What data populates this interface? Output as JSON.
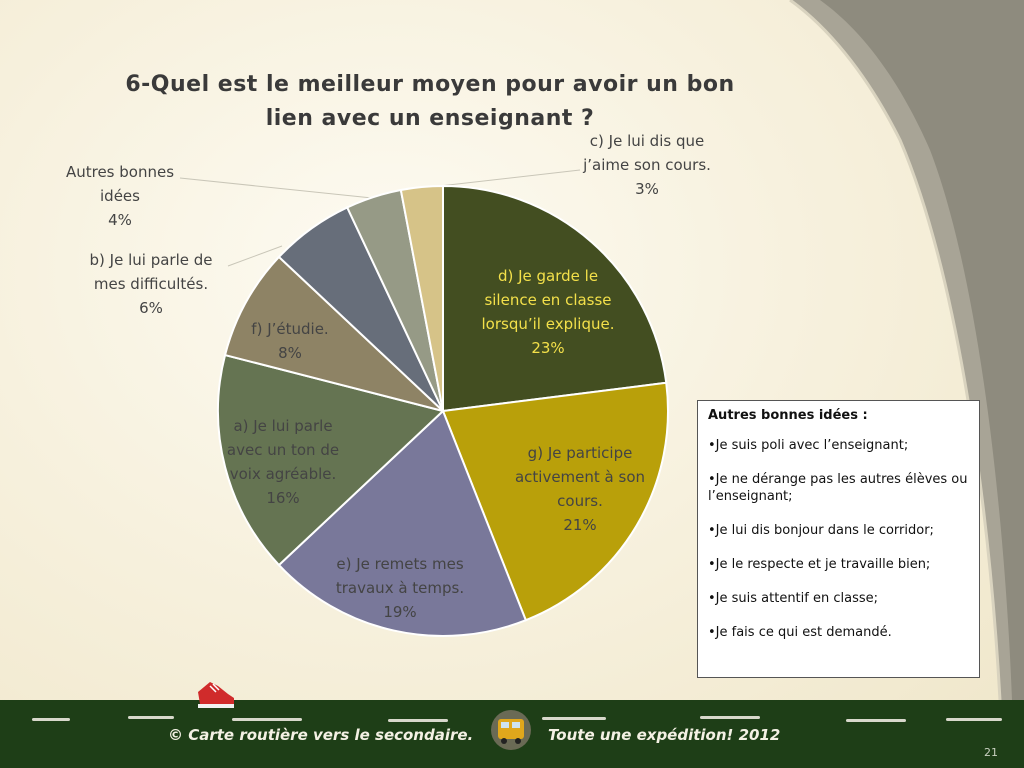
{
  "chart_data": {
    "type": "pie",
    "title": "6-Quel est le meilleur moyen pour avoir un bon lien avec un enseignant ?",
    "slices": [
      {
        "lines": [
          "d) Je garde le",
          "silence en classe",
          "lorsqu’il explique."
        ],
        "value": 23,
        "pct": "23%",
        "color": "#434e21"
      },
      {
        "lines": [
          "g) Je participe",
          "activement à son",
          "cours."
        ],
        "value": 21,
        "pct": "21%",
        "color": "#b9a00a"
      },
      {
        "lines": [
          "e) Je remets mes",
          "travaux à temps."
        ],
        "value": 19,
        "pct": "19%",
        "color": "#79789a"
      },
      {
        "lines": [
          "a) Je lui parle",
          "avec un ton de",
          "voix agréable."
        ],
        "value": 16,
        "pct": "16%",
        "color": "#657452"
      },
      {
        "lines": [
          "f) J’étudie."
        ],
        "value": 8,
        "pct": "8%",
        "color": "#8e8365"
      },
      {
        "lines": [
          "b) Je lui parle de",
          "mes difficultés."
        ],
        "value": 6,
        "pct": "6%",
        "color": "#676e7a"
      },
      {
        "lines": [
          "Autres bonnes",
          "idées"
        ],
        "value": 4,
        "pct": "4%",
        "color": "#969a86"
      },
      {
        "lines": [
          "c) Je lui dis que",
          "j’aime son cours."
        ],
        "value": 3,
        "pct": "3%",
        "color": "#d6c388"
      }
    ]
  },
  "ideas_box": {
    "title": "Autres bonnes idées :",
    "items": [
      "•Je suis poli avec l’enseignant;",
      "•Je ne dérange pas les autres élèves ou l’enseignant;",
      "•Je lui dis bonjour dans le corridor;",
      "•Je le respecte et je travaille bien;",
      "•Je suis attentif en classe;",
      "•Je fais ce qui est demandé."
    ]
  },
  "footer": {
    "left_text": "© Carte routière vers le secondaire.",
    "right_text": "Toute une expédition! 2012",
    "page_number": "21"
  },
  "icons": {
    "shoe": "sneaker-icon",
    "bus": "school-bus-icon"
  }
}
